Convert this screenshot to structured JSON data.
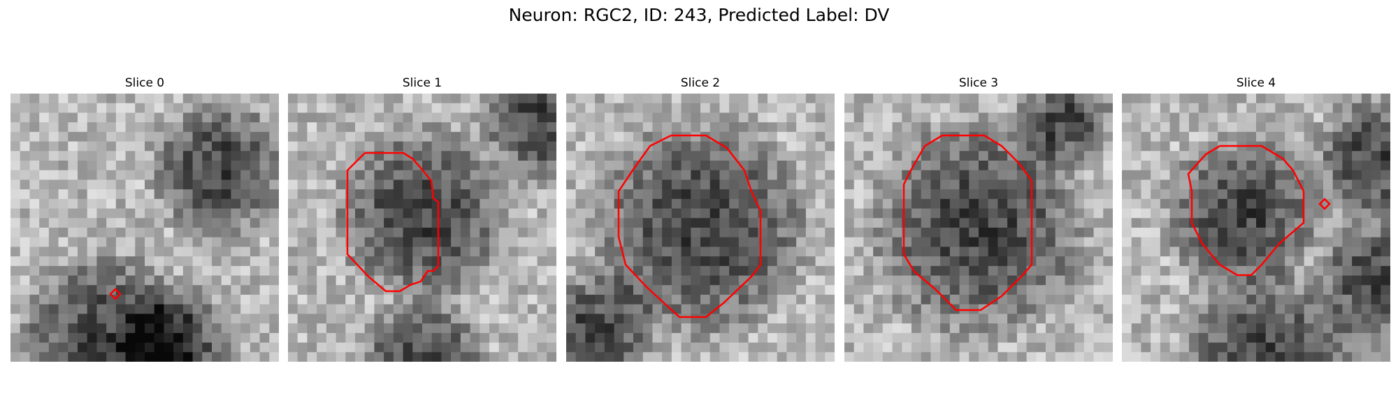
{
  "figure": {
    "title": "Neuron: RGC2, ID: 243, Predicted Label: DV",
    "roi_color": "#ff0000",
    "colormap": "gray"
  },
  "panels": [
    {
      "title": "Slice 0",
      "roi": "marker",
      "seed": 11
    },
    {
      "title": "Slice 1",
      "roi": "contour",
      "seed": 23
    },
    {
      "title": "Slice 2",
      "roi": "contour",
      "seed": 37
    },
    {
      "title": "Slice 3",
      "roi": "contour",
      "seed": 41
    },
    {
      "title": "Slice 4",
      "roi": "contour+marker",
      "seed": 53
    }
  ]
}
